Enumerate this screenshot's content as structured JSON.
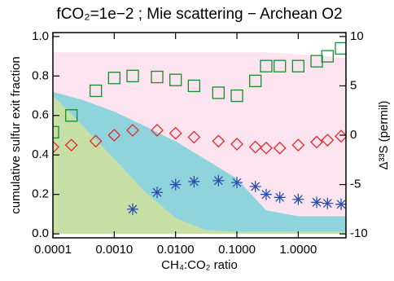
{
  "chart_data": {
    "type": "scatter",
    "title": "fCO₂=1e−2 ; Mie scattering − Archean O2",
    "x_label": "CH₄:CO₂ ratio",
    "y_label": "cumulative sulfur exit fraction",
    "y2_label": "Δ³³S (permil)",
    "log_x": true,
    "xlim": [
      0.0001,
      6
    ],
    "xticks": [
      0.0001,
      {
        "value": 0.001,
        "label": "0.0010"
      },
      {
        "value": 0.01,
        "label": "0.0100"
      },
      {
        "value": 0.1,
        "label": "0.1000"
      },
      {
        "value": 1,
        "label": "1.0000"
      }
    ],
    "ylim": [
      -0.02,
      1.02
    ],
    "yticks": [
      {
        "value": 0,
        "label": "0.0"
      },
      {
        "value": 0.2,
        "label": "0.2"
      },
      {
        "value": 0.4,
        "label": "0.4"
      },
      {
        "value": 0.6,
        "label": "0.6"
      },
      {
        "value": 0.8,
        "label": "0.8"
      },
      {
        "value": 1,
        "label": "1.0"
      }
    ],
    "y2lim": [
      -10.4,
      10.4
    ],
    "y2ticks": [
      -10,
      -5,
      0,
      5,
      10
    ],
    "areas": {
      "x": [
        0.0001,
        0.0003,
        0.001,
        0.003,
        0.01,
        0.03,
        0.1,
        0.3,
        1,
        3,
        6
      ],
      "series": [
        {
          "color": "#c5dfa5",
          "values": [
            0.7,
            0.55,
            0.38,
            0.22,
            0.08,
            0.02,
            0.01,
            0.01,
            0.01,
            0.01,
            0.01
          ]
        },
        {
          "color": "#8fd4dc",
          "values": [
            0.02,
            0.13,
            0.24,
            0.33,
            0.39,
            0.36,
            0.27,
            0.11,
            0.08,
            0.08,
            0.08
          ]
        },
        {
          "color": "#fbe3ef",
          "values": [
            0.2,
            0.24,
            0.3,
            0.37,
            0.45,
            0.54,
            0.64,
            0.8,
            0.82,
            0.81,
            0.8
          ]
        }
      ]
    },
    "x": [
      0.0001,
      0.0002,
      0.0005,
      0.001,
      0.002,
      0.005,
      0.01,
      0.02,
      0.05,
      0.1,
      0.2,
      0.3,
      0.5,
      1,
      2,
      3,
      5
    ],
    "series": [
      {
        "marker": "square",
        "color": "#1a8a2e",
        "axis": "y2",
        "values": [
          0.3,
          2,
          4.5,
          5.8,
          6.0,
          5.9,
          5.6,
          5.0,
          4.3,
          4.0,
          5.5,
          7.0,
          7.0,
          7.0,
          7.5,
          8.0,
          8.8
        ]
      },
      {
        "marker": "diamond",
        "color": "#e8262a",
        "axis": "y2",
        "values": [
          -1.2,
          -1.0,
          -0.6,
          0.0,
          0.5,
          0.5,
          0.2,
          -0.2,
          -0.6,
          -0.9,
          -1.2,
          -1.3,
          -1.3,
          -1.0,
          -0.7,
          -0.5,
          -0.1
        ]
      },
      {
        "marker": "asterisk",
        "color": "#2b4fa8",
        "axis": "y2",
        "values": [
          null,
          null,
          null,
          null,
          -7.5,
          -5.8,
          -5.0,
          -4.7,
          -4.6,
          -4.8,
          -5.2,
          -6.0,
          -6.3,
          -6.5,
          -6.8,
          -6.9,
          -7.0
        ]
      }
    ]
  }
}
